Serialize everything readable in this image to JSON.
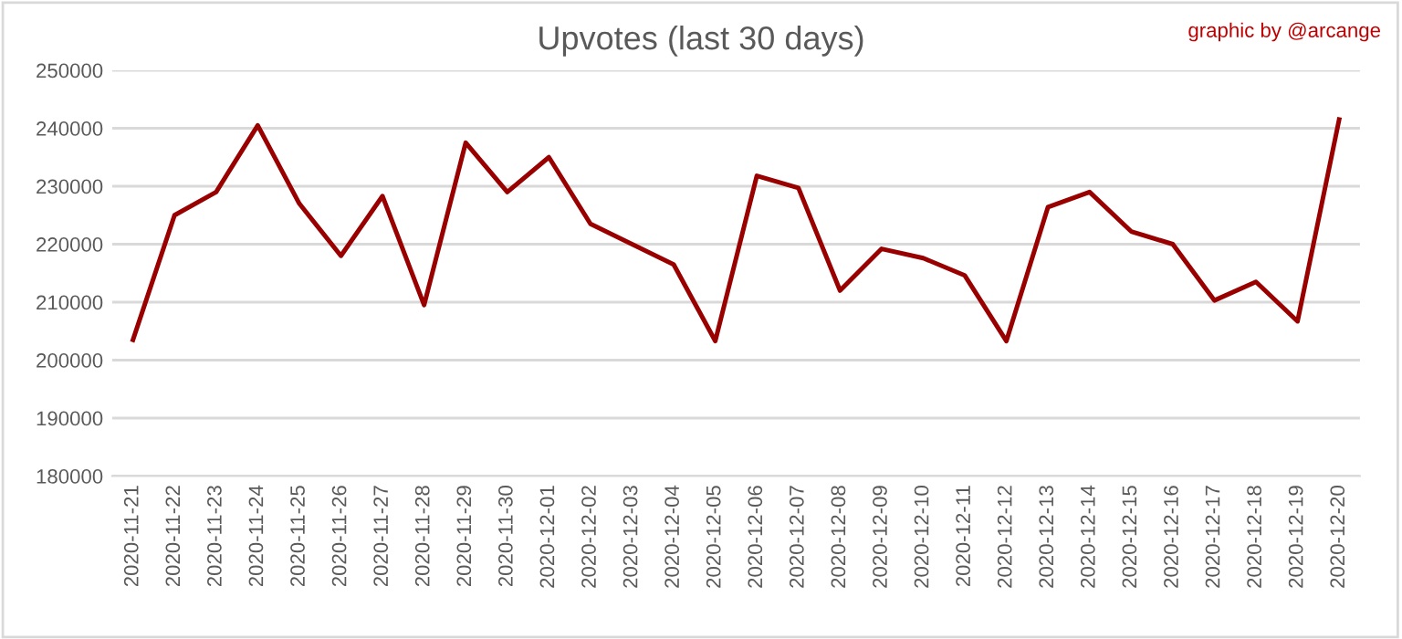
{
  "chart_data": {
    "type": "line",
    "title": "Upvotes (last 30 days)",
    "annotations": [
      "graphic by @arcange"
    ],
    "categories": [
      "2020-11-21",
      "2020-11-22",
      "2020-11-23",
      "2020-11-24",
      "2020-11-25",
      "2020-11-26",
      "2020-11-27",
      "2020-11-28",
      "2020-11-29",
      "2020-11-30",
      "2020-12-01",
      "2020-12-02",
      "2020-12-03",
      "2020-12-04",
      "2020-12-05",
      "2020-12-06",
      "2020-12-07",
      "2020-12-08",
      "2020-12-09",
      "2020-12-10",
      "2020-12-11",
      "2020-12-12",
      "2020-12-13",
      "2020-12-14",
      "2020-12-15",
      "2020-12-16",
      "2020-12-17",
      "2020-12-18",
      "2020-12-19",
      "2020-12-20"
    ],
    "series": [
      {
        "color": "#990000",
        "values": [
          203500,
          225000,
          229000,
          240500,
          227000,
          218000,
          228300,
          209500,
          237500,
          229000,
          235000,
          223500,
          220000,
          216500,
          203300,
          231800,
          229700,
          212000,
          219200,
          217600,
          214600,
          203300,
          226400,
          229000,
          222200,
          220000,
          210300,
          213500,
          206700,
          241500
        ]
      }
    ],
    "ylim": [
      180000,
      250000
    ],
    "yticks": [
      180000,
      190000,
      200000,
      210000,
      220000,
      230000,
      240000,
      250000
    ],
    "grid": "y",
    "legend": false,
    "marker": "none",
    "line_style": "solid"
  }
}
